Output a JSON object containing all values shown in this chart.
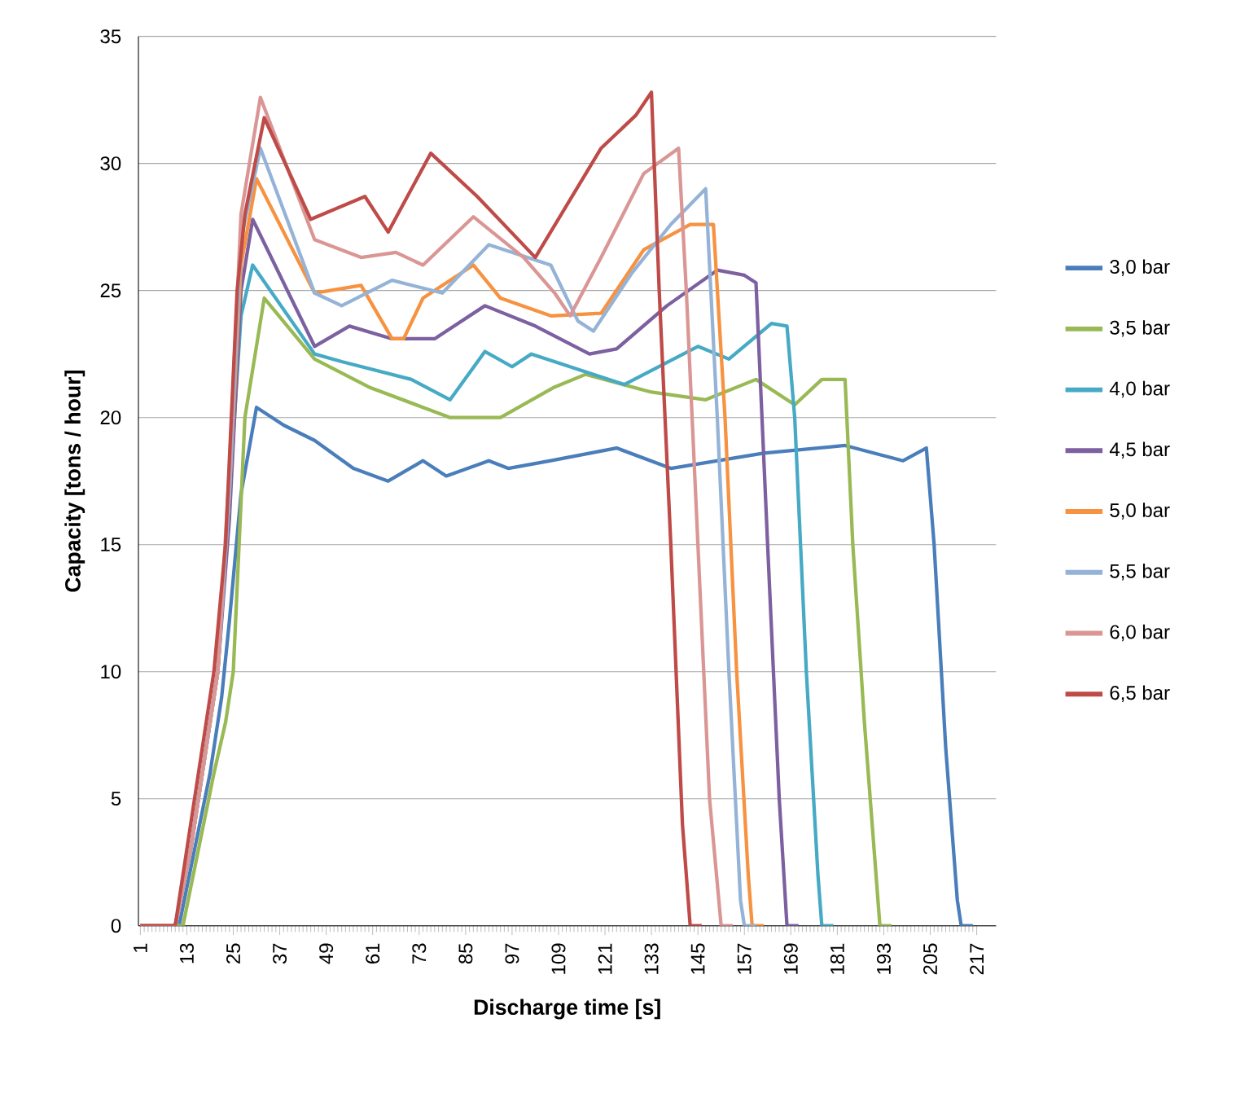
{
  "chart_data": {
    "type": "line",
    "xlabel": "Discharge time [s]",
    "ylabel": "Capacity [tons / hour]",
    "xlim": [
      0.5,
      222
    ],
    "ylim": [
      0,
      35
    ],
    "xticks": [
      1,
      13,
      25,
      37,
      49,
      61,
      73,
      85,
      97,
      109,
      121,
      133,
      145,
      157,
      169,
      181,
      193,
      205,
      217
    ],
    "yticks": [
      0,
      5,
      10,
      15,
      20,
      25,
      30,
      35
    ],
    "grid": "y",
    "legend": "right",
    "series": [
      {
        "name": "3,0 bar",
        "color": "#4a7ebb",
        "x": [
          1,
          11,
          15,
          19,
          22,
          24,
          27,
          31,
          38,
          46,
          56,
          65,
          74,
          80,
          91,
          96,
          107,
          124,
          138,
          162,
          183,
          198,
          204,
          206,
          209,
          212,
          213,
          216
        ],
        "values": [
          0,
          0,
          3,
          6,
          9,
          12,
          17,
          20.4,
          19.7,
          19.1,
          18.0,
          17.5,
          18.3,
          17.7,
          18.3,
          18.0,
          18.3,
          18.8,
          18.0,
          18.6,
          18.9,
          18.3,
          18.8,
          15,
          7,
          1,
          0,
          0
        ]
      },
      {
        "name": "3,5 bar",
        "color": "#98b954",
        "x": [
          1,
          12,
          16,
          20,
          23,
          25,
          28,
          33,
          46,
          60,
          74,
          81,
          94,
          108,
          116,
          133,
          147,
          160,
          170,
          177,
          183,
          185,
          188,
          191,
          192,
          195
        ],
        "values": [
          0,
          0,
          3,
          6,
          8,
          10,
          20,
          24.7,
          22.3,
          21.2,
          20.4,
          20.0,
          20.0,
          21.2,
          21.7,
          21.0,
          20.7,
          21.5,
          20.5,
          21.5,
          21.5,
          15,
          8,
          2,
          0,
          0
        ]
      },
      {
        "name": "4,0 bar",
        "color": "#46aac5",
        "x": [
          1,
          10,
          14,
          18,
          21,
          24,
          27,
          30,
          46,
          53,
          71,
          81,
          90,
          97,
          102,
          126,
          145,
          153,
          164,
          168,
          170,
          173,
          176,
          177,
          180
        ],
        "values": [
          0,
          0,
          3,
          7,
          10,
          17,
          24,
          26,
          22.5,
          22.2,
          21.5,
          20.7,
          22.6,
          22.0,
          22.5,
          21.3,
          22.8,
          22.3,
          23.7,
          23.6,
          20,
          10,
          2,
          0,
          0
        ]
      },
      {
        "name": "4,5 bar",
        "color": "#7d60a0",
        "x": [
          1,
          10,
          14,
          18,
          21,
          24,
          27,
          30,
          46,
          55,
          66,
          77,
          90,
          103,
          117,
          124,
          137,
          150,
          157,
          160,
          163,
          166,
          168,
          171
        ],
        "values": [
          0,
          0,
          3,
          7,
          10,
          16,
          25,
          27.8,
          22.8,
          23.6,
          23.1,
          23.1,
          24.4,
          23.6,
          22.5,
          22.7,
          24.4,
          25.8,
          25.6,
          25.3,
          15,
          5,
          0,
          0
        ]
      },
      {
        "name": "5,0 bar",
        "color": "#f69240",
        "x": [
          1,
          10,
          14,
          18,
          21,
          24,
          27,
          31,
          46,
          58,
          66,
          69,
          74,
          87,
          94,
          107,
          120,
          131,
          143,
          149,
          152,
          155,
          158,
          159,
          162
        ],
        "values": [
          0,
          0,
          3,
          7,
          10,
          17,
          26,
          29.4,
          24.9,
          25.2,
          23.1,
          23.1,
          24.7,
          26.0,
          24.7,
          24.0,
          24.1,
          26.6,
          27.6,
          27.6,
          20,
          10,
          2,
          0,
          0
        ]
      },
      {
        "name": "5,5 bar",
        "color": "#95b3d7",
        "x": [
          1,
          10,
          14,
          18,
          21,
          24,
          27,
          32,
          46,
          53,
          66,
          79,
          91,
          107,
          114,
          118,
          128,
          138,
          147,
          150,
          153,
          156,
          157,
          160
        ],
        "values": [
          0,
          0,
          3,
          7,
          10,
          17,
          27,
          30.6,
          24.9,
          24.4,
          25.4,
          24.9,
          26.8,
          26.0,
          23.8,
          23.4,
          25.7,
          27.6,
          29.0,
          20,
          10,
          1,
          0,
          0
        ]
      },
      {
        "name": "6,0 bar",
        "color": "#da9694",
        "x": [
          1,
          10,
          14,
          18,
          21,
          24,
          27,
          32,
          46,
          58,
          67,
          74,
          87,
          100,
          108,
          112,
          120,
          131,
          140,
          142,
          145,
          148,
          151,
          154
        ],
        "values": [
          0,
          0,
          3,
          7,
          10,
          18,
          28,
          32.6,
          27.0,
          26.3,
          26.5,
          26.0,
          27.9,
          26.3,
          24.9,
          24.0,
          26.3,
          29.6,
          30.6,
          25,
          15,
          5,
          0,
          0
        ]
      },
      {
        "name": "6,5 bar",
        "color": "#be4b48",
        "x": [
          1,
          10,
          15,
          20,
          23,
          26,
          28,
          33,
          45,
          59,
          65,
          76,
          88,
          103,
          120,
          129,
          133,
          135,
          138,
          141,
          143,
          146
        ],
        "values": [
          0,
          0,
          5,
          10,
          15,
          25,
          28,
          31.8,
          27.8,
          28.7,
          27.3,
          30.4,
          28.7,
          26.3,
          30.6,
          31.9,
          32.8,
          25,
          15,
          4,
          0,
          0
        ]
      }
    ]
  }
}
